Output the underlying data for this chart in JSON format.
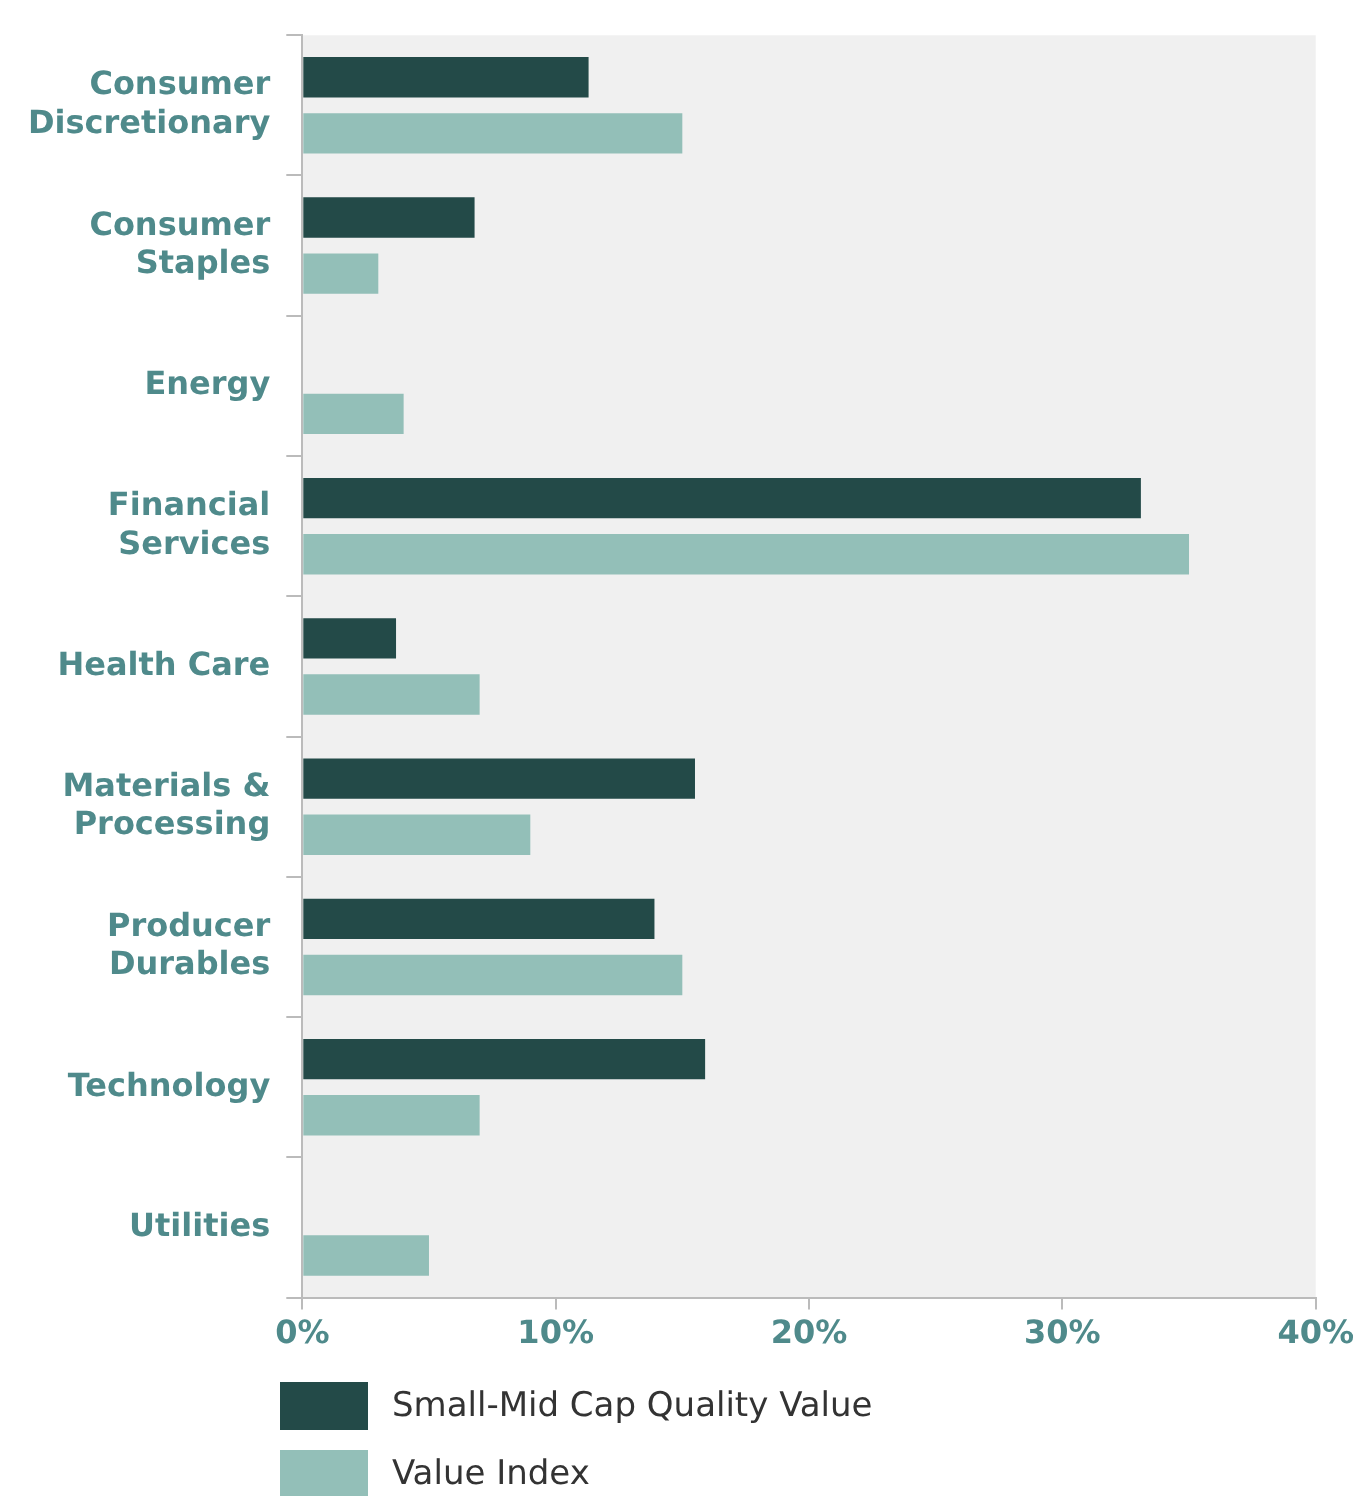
{
  "chart_data": {
    "type": "bar",
    "orientation": "horizontal",
    "categories": [
      "Consumer Discretionary",
      "Consumer Staples",
      "Energy",
      "Financial Services",
      "Health Care",
      "Materials & Processing",
      "Producer Durables",
      "Technology",
      "Utilities"
    ],
    "series": [
      {
        "name": "Small-Mid Cap Quality Value",
        "color": "#234a48",
        "values": [
          11.3,
          6.8,
          null,
          33.1,
          3.7,
          15.5,
          13.9,
          15.9,
          null
        ]
      },
      {
        "name": "Value Index",
        "color": "#93bfb8",
        "values": [
          15.0,
          3.0,
          4.0,
          35.0,
          7.0,
          9.0,
          15.0,
          7.0,
          5.0
        ]
      }
    ],
    "xlim": [
      0,
      40
    ],
    "xticks": [
      {
        "value": 0,
        "label": "0%"
      },
      {
        "value": 10,
        "label": "10%"
      },
      {
        "value": 20,
        "label": "20%"
      },
      {
        "value": 30,
        "label": "30%"
      },
      {
        "value": 40,
        "label": "40%"
      }
    ],
    "grid": false,
    "legend": "bottom"
  }
}
